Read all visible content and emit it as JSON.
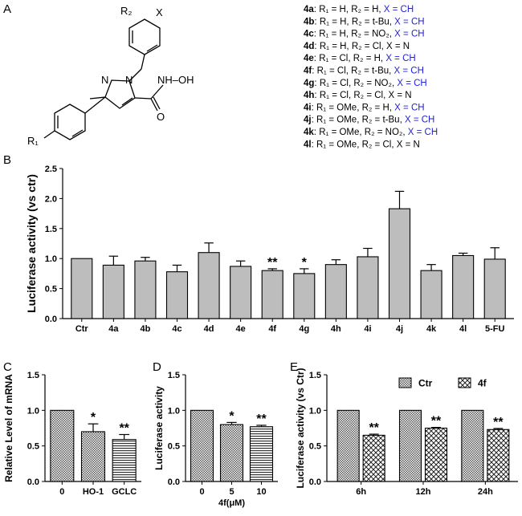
{
  "panel_labels": [
    "A",
    "B",
    "C",
    "D",
    "E"
  ],
  "structure": {
    "r2": "R₂",
    "x": "X",
    "n1": "N",
    "n2": "N",
    "side_chain": "NH–OH",
    "side_chain_n": "HN",
    "carbonyl_o": "O",
    "r1": "R₁"
  },
  "compounds": [
    {
      "id": "4a",
      "r1": "R₁ = H",
      "r2": "R₂ = H",
      "x": "X = CH"
    },
    {
      "id": "4b",
      "r1": "R₁ = H",
      "r2": "R₂ = t-Bu",
      "x": "X = CH"
    },
    {
      "id": "4c",
      "r1": "R₁ = H",
      "r2": "R₂ = NO₂",
      "x": "X = CH"
    },
    {
      "id": "4d",
      "r1": "R₁ = H",
      "r2": "R₂ = Cl",
      "x": "X = N"
    },
    {
      "id": "4e",
      "r1": "R₁ = Cl",
      "r2": "R₂ = H",
      "x": "X = CH"
    },
    {
      "id": "4f",
      "r1": "R₁ = Cl",
      "r2": "R₂ = t-Bu",
      "x": "X = CH"
    },
    {
      "id": "4g",
      "r1": "R₁ = Cl",
      "r2": "R₂ = NO₂",
      "x": "X = CH"
    },
    {
      "id": "4h",
      "r1": "R₁ = Cl",
      "r2": "R₂ = Cl",
      "x": "X = N"
    },
    {
      "id": "4i",
      "r1": "R₁ = OMe",
      "r2": "R₂ = H",
      "x": "X = CH"
    },
    {
      "id": "4j",
      "r1": "R₁ = OMe",
      "r2": "R₂ = t-Bu",
      "x": "X = CH"
    },
    {
      "id": "4k",
      "r1": "R₁ = OMe",
      "r2": "R₂ = NO₂",
      "x": "X = CH"
    },
    {
      "id": "4l",
      "r1": "R₁ = OMe",
      "r2": "R₂ = Cl",
      "x": "X = N"
    }
  ],
  "colors": {
    "bar_gray": "#bdbdbd",
    "x_blue": "#1f1fd6",
    "axis": "#000000"
  },
  "chart_data": [
    {
      "panel": "B",
      "type": "bar",
      "ylabel": "Luciferase activity (vs ctr)",
      "ylim": [
        0,
        2.5
      ],
      "yticks": [
        "0.0",
        "0.5",
        "1.0",
        "1.5",
        "2.0",
        "2.5"
      ],
      "categories": [
        "Ctr",
        "4a",
        "4b",
        "4c",
        "4d",
        "4e",
        "4f",
        "4g",
        "4h",
        "4i",
        "4j",
        "4k",
        "4l",
        "5-FU"
      ],
      "values": [
        1.0,
        0.89,
        0.96,
        0.78,
        1.1,
        0.87,
        0.8,
        0.75,
        0.9,
        1.03,
        1.83,
        0.8,
        1.05,
        0.99
      ],
      "errors": [
        0,
        0.15,
        0.06,
        0.11,
        0.16,
        0.09,
        0.03,
        0.08,
        0.08,
        0.14,
        0.29,
        0.1,
        0.04,
        0.19
      ],
      "significance": [
        "",
        "",
        "",
        "",
        "",
        "",
        "**",
        "*",
        "",
        "",
        "",
        "",
        "",
        ""
      ]
    },
    {
      "panel": "C",
      "type": "bar",
      "ylabel": "Relative Level of mRNA",
      "ylim": [
        0,
        1.5
      ],
      "yticks": [
        "0.0",
        "0.5",
        "1.0",
        "1.5"
      ],
      "categories": [
        "0",
        "HO-1",
        "GCLC"
      ],
      "values": [
        1.0,
        0.7,
        0.59
      ],
      "errors": [
        0,
        0.11,
        0.07
      ],
      "significance": [
        "",
        "*",
        "**"
      ],
      "patterns": [
        "checker",
        "checker",
        "hstripe"
      ]
    },
    {
      "panel": "D",
      "type": "bar",
      "ylabel": "Luciferase activity",
      "xlabel": "4f(μM)",
      "ylim": [
        0,
        1.5
      ],
      "yticks": [
        "0.0",
        "0.5",
        "1.0",
        "1.5"
      ],
      "categories": [
        "0",
        "5",
        "10"
      ],
      "values": [
        1.0,
        0.8,
        0.77
      ],
      "errors": [
        0,
        0.03,
        0.02
      ],
      "significance": [
        "",
        "*",
        "**"
      ],
      "patterns": [
        "checker",
        "checker",
        "hstripe"
      ]
    },
    {
      "panel": "E",
      "type": "bar",
      "ylabel": "Luciferase activity (vs Ctr)",
      "ylim": [
        0,
        1.5
      ],
      "yticks": [
        "0.0",
        "0.5",
        "1.0",
        "1.5"
      ],
      "categories": [
        "6h",
        "12h",
        "24h"
      ],
      "legend_position": "top",
      "series": [
        {
          "name": "Ctr",
          "values": [
            1.0,
            1.0,
            1.0
          ],
          "errors": [
            0,
            0,
            0
          ],
          "significance": [
            "",
            "",
            ""
          ],
          "pattern": "checker"
        },
        {
          "name": "4f",
          "values": [
            0.65,
            0.75,
            0.73
          ],
          "errors": [
            0.015,
            0.01,
            0.015
          ],
          "significance": [
            "**",
            "**",
            "**"
          ],
          "pattern": "crosshatch"
        }
      ]
    }
  ]
}
